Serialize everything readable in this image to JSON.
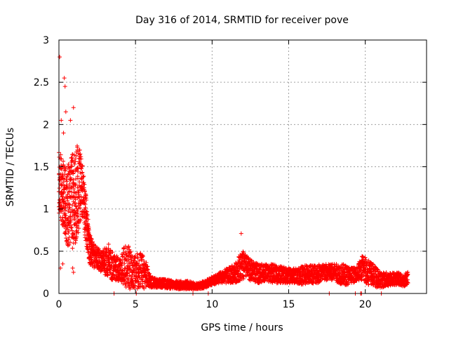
{
  "chart_data": {
    "type": "scatter",
    "title": "Day 316 of 2014, SRMTID for receiver pove",
    "xlabel": "GPS time / hours",
    "ylabel": "SRMTID / TECUs",
    "xlim": [
      0,
      24
    ],
    "ylim": [
      0,
      3
    ],
    "xticks": [
      0,
      5,
      10,
      15,
      20
    ],
    "xtick_labels": [
      "0",
      "5",
      "10",
      "15",
      "20"
    ],
    "yticks": [
      0,
      0.5,
      1,
      1.5,
      2,
      2.5,
      3
    ],
    "ytick_labels": [
      "0",
      "0.5",
      "1",
      "1.5",
      "2",
      "2.5",
      "3"
    ],
    "grid": true,
    "marker": "+",
    "color": "#ff0000",
    "series": [
      {
        "name": "SRMTID",
        "envelope_x": [
          0.0,
          0.25,
          0.5,
          0.75,
          1.0,
          1.25,
          1.5,
          1.75,
          2.0,
          2.25,
          2.5,
          2.75,
          3.0,
          3.25,
          3.5,
          4.0,
          4.25,
          4.5,
          4.75,
          5.0,
          5.25,
          5.5,
          5.75,
          6.0,
          6.5,
          7.0,
          7.5,
          8.0,
          8.5,
          9.0,
          9.5,
          10.0,
          10.5,
          11.0,
          11.5,
          11.75,
          12.0,
          12.25,
          12.5,
          13.0,
          13.5,
          14.0,
          14.5,
          15.0,
          15.5,
          16.0,
          16.5,
          17.0,
          17.5,
          18.0,
          18.5,
          19.0,
          19.4,
          19.8,
          20.0,
          20.25,
          20.5,
          20.75,
          21.0,
          21.5,
          22.0,
          22.25,
          22.5,
          22.75
        ],
        "envelope_low": [
          0.9,
          0.8,
          0.6,
          0.5,
          0.5,
          0.7,
          0.9,
          0.6,
          0.35,
          0.3,
          0.3,
          0.25,
          0.2,
          0.2,
          0.15,
          0.15,
          0.1,
          0.05,
          0.05,
          0.05,
          0.05,
          0.05,
          0.08,
          0.07,
          0.07,
          0.06,
          0.05,
          0.05,
          0.05,
          0.05,
          0.06,
          0.1,
          0.12,
          0.12,
          0.12,
          0.15,
          0.15,
          0.18,
          0.15,
          0.12,
          0.15,
          0.12,
          0.12,
          0.12,
          0.12,
          0.1,
          0.12,
          0.12,
          0.15,
          0.15,
          0.1,
          0.1,
          0.15,
          0.15,
          0.12,
          0.1,
          0.1,
          0.07,
          0.07,
          0.08,
          0.1,
          0.1,
          0.08,
          0.1
        ],
        "envelope_high": [
          1.7,
          1.6,
          1.5,
          1.6,
          1.7,
          1.8,
          1.6,
          1.2,
          0.7,
          0.6,
          0.55,
          0.5,
          0.55,
          0.6,
          0.5,
          0.4,
          0.55,
          0.6,
          0.45,
          0.45,
          0.5,
          0.45,
          0.35,
          0.2,
          0.17,
          0.17,
          0.15,
          0.15,
          0.15,
          0.12,
          0.15,
          0.2,
          0.25,
          0.3,
          0.35,
          0.45,
          0.5,
          0.45,
          0.4,
          0.35,
          0.35,
          0.35,
          0.32,
          0.3,
          0.3,
          0.33,
          0.35,
          0.35,
          0.35,
          0.35,
          0.35,
          0.32,
          0.3,
          0.45,
          0.45,
          0.4,
          0.35,
          0.3,
          0.25,
          0.25,
          0.25,
          0.25,
          0.2,
          0.28
        ],
        "outliers": [
          [
            0.05,
            2.8
          ],
          [
            0.35,
            2.55
          ],
          [
            0.4,
            2.45
          ],
          [
            0.45,
            2.15
          ],
          [
            0.75,
            2.05
          ],
          [
            0.95,
            2.2
          ],
          [
            0.3,
            1.9
          ],
          [
            0.15,
            2.05
          ],
          [
            0.1,
            0.3
          ],
          [
            0.25,
            0.35
          ],
          [
            0.9,
            0.3
          ],
          [
            0.95,
            0.25
          ],
          [
            11.9,
            0.71
          ],
          [
            3.6,
            0.0
          ],
          [
            5.05,
            0.0
          ],
          [
            8.75,
            0.0
          ],
          [
            9.75,
            0.0
          ],
          [
            17.65,
            0.0
          ],
          [
            19.35,
            0.0
          ],
          [
            19.7,
            0.0
          ],
          [
            19.75,
            0.0
          ],
          [
            21.05,
            0.0
          ]
        ],
        "x_end": 22.8
      }
    ]
  }
}
